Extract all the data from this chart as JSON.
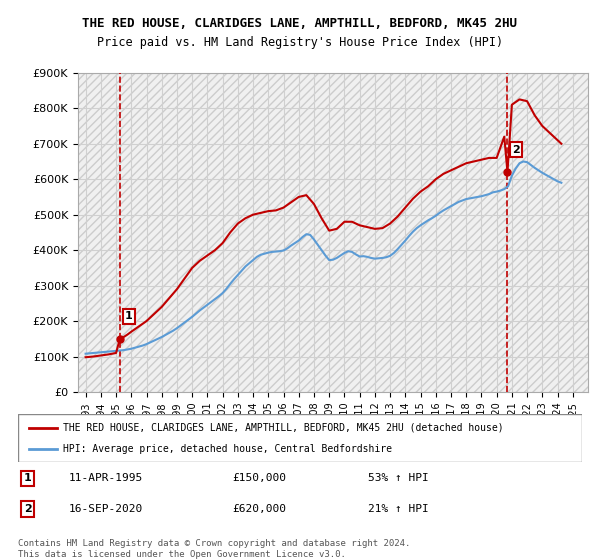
{
  "title_line1": "THE RED HOUSE, CLARIDGES LANE, AMPTHILL, BEDFORD, MK45 2HU",
  "title_line2": "Price paid vs. HM Land Registry's House Price Index (HPI)",
  "ylabel": "",
  "ylim": [
    0,
    900000
  ],
  "yticks": [
    0,
    100000,
    200000,
    300000,
    400000,
    500000,
    600000,
    700000,
    800000,
    900000
  ],
  "ytick_labels": [
    "£0",
    "£100K",
    "£200K",
    "£300K",
    "£400K",
    "£500K",
    "£600K",
    "£700K",
    "£800K",
    "£900K"
  ],
  "xlim_start": 1992.5,
  "xlim_end": 2026.0,
  "xticks": [
    1993,
    1994,
    1995,
    1996,
    1997,
    1998,
    1999,
    2000,
    2001,
    2002,
    2003,
    2004,
    2005,
    2006,
    2007,
    2008,
    2009,
    2010,
    2011,
    2012,
    2013,
    2014,
    2015,
    2016,
    2017,
    2018,
    2019,
    2020,
    2021,
    2022,
    2023,
    2024,
    2025
  ],
  "sale1_x": 1995.27,
  "sale1_y": 150000,
  "sale1_label": "1",
  "sale2_x": 2020.71,
  "sale2_y": 620000,
  "sale2_label": "2",
  "hpi_color": "#5b9bd5",
  "property_color": "#c00000",
  "vline_color": "#c00000",
  "grid_color": "#d0d0d0",
  "bg_color": "#f0f0f0",
  "legend_line1": "THE RED HOUSE, CLARIDGES LANE, AMPTHILL, BEDFORD, MK45 2HU (detached house)",
  "legend_line2": "HPI: Average price, detached house, Central Bedfordshire",
  "annotation1_date": "11-APR-1995",
  "annotation1_price": "£150,000",
  "annotation1_hpi": "53% ↑ HPI",
  "annotation2_date": "16-SEP-2020",
  "annotation2_price": "£620,000",
  "annotation2_hpi": "21% ↑ HPI",
  "footer": "Contains HM Land Registry data © Crown copyright and database right 2024.\nThis data is licensed under the Open Government Licence v3.0.",
  "hpi_data_x": [
    1993.0,
    1993.25,
    1993.5,
    1993.75,
    1994.0,
    1994.25,
    1994.5,
    1994.75,
    1995.0,
    1995.25,
    1995.5,
    1995.75,
    1996.0,
    1996.25,
    1996.5,
    1996.75,
    1997.0,
    1997.25,
    1997.5,
    1997.75,
    1998.0,
    1998.25,
    1998.5,
    1998.75,
    1999.0,
    1999.25,
    1999.5,
    1999.75,
    2000.0,
    2000.25,
    2000.5,
    2000.75,
    2001.0,
    2001.25,
    2001.5,
    2001.75,
    2002.0,
    2002.25,
    2002.5,
    2002.75,
    2003.0,
    2003.25,
    2003.5,
    2003.75,
    2004.0,
    2004.25,
    2004.5,
    2004.75,
    2005.0,
    2005.25,
    2005.5,
    2005.75,
    2006.0,
    2006.25,
    2006.5,
    2006.75,
    2007.0,
    2007.25,
    2007.5,
    2007.75,
    2008.0,
    2008.25,
    2008.5,
    2008.75,
    2009.0,
    2009.25,
    2009.5,
    2009.75,
    2010.0,
    2010.25,
    2010.5,
    2010.75,
    2011.0,
    2011.25,
    2011.5,
    2011.75,
    2012.0,
    2012.25,
    2012.5,
    2012.75,
    2013.0,
    2013.25,
    2013.5,
    2013.75,
    2014.0,
    2014.25,
    2014.5,
    2014.75,
    2015.0,
    2015.25,
    2015.5,
    2015.75,
    2016.0,
    2016.25,
    2016.5,
    2016.75,
    2017.0,
    2017.25,
    2017.5,
    2017.75,
    2018.0,
    2018.25,
    2018.5,
    2018.75,
    2019.0,
    2019.25,
    2019.5,
    2019.75,
    2020.0,
    2020.25,
    2020.5,
    2020.75,
    2021.0,
    2021.25,
    2021.5,
    2021.75,
    2022.0,
    2022.25,
    2022.5,
    2022.75,
    2023.0,
    2023.25,
    2023.5,
    2023.75,
    2024.0,
    2024.25
  ],
  "hpi_data_y": [
    108000,
    109000,
    110000,
    111000,
    112000,
    113000,
    114000,
    115000,
    116000,
    117000,
    118000,
    120000,
    122000,
    125000,
    128000,
    131000,
    135000,
    140000,
    145000,
    150000,
    155000,
    161000,
    167000,
    173000,
    180000,
    188000,
    196000,
    204000,
    212000,
    221000,
    230000,
    238000,
    246000,
    254000,
    262000,
    270000,
    279000,
    291000,
    305000,
    318000,
    330000,
    342000,
    354000,
    363000,
    372000,
    381000,
    387000,
    390000,
    393000,
    395000,
    396000,
    397000,
    399000,
    405000,
    413000,
    420000,
    427000,
    437000,
    445000,
    443000,
    430000,
    415000,
    400000,
    385000,
    372000,
    373000,
    378000,
    385000,
    392000,
    397000,
    395000,
    388000,
    382000,
    383000,
    381000,
    378000,
    376000,
    377000,
    378000,
    380000,
    384000,
    392000,
    403000,
    415000,
    427000,
    440000,
    452000,
    462000,
    470000,
    477000,
    484000,
    490000,
    497000,
    505000,
    512000,
    518000,
    524000,
    530000,
    536000,
    540000,
    544000,
    546000,
    548000,
    550000,
    552000,
    555000,
    558000,
    563000,
    565000,
    568000,
    572000,
    580000,
    610000,
    630000,
    645000,
    650000,
    648000,
    640000,
    632000,
    625000,
    618000,
    612000,
    606000,
    600000,
    594000,
    590000
  ],
  "property_data_x": [
    1993.0,
    1993.5,
    1994.0,
    1994.5,
    1995.0,
    1995.25,
    1995.5,
    1995.75,
    1996.0,
    1996.5,
    1997.0,
    1997.5,
    1998.0,
    1998.5,
    1999.0,
    1999.5,
    2000.0,
    2000.5,
    2001.0,
    2001.5,
    2002.0,
    2002.5,
    2003.0,
    2003.5,
    2004.0,
    2004.5,
    2005.0,
    2005.5,
    2006.0,
    2006.5,
    2007.0,
    2007.5,
    2008.0,
    2008.5,
    2009.0,
    2009.5,
    2010.0,
    2010.5,
    2011.0,
    2011.5,
    2012.0,
    2012.5,
    2013.0,
    2013.5,
    2014.0,
    2014.5,
    2015.0,
    2015.5,
    2016.0,
    2016.5,
    2017.0,
    2017.5,
    2018.0,
    2018.5,
    2019.0,
    2019.5,
    2020.0,
    2020.5,
    2020.71,
    2021.0,
    2021.5,
    2022.0,
    2022.5,
    2023.0,
    2023.5,
    2024.0,
    2024.25
  ],
  "property_data_y": [
    98000,
    100000,
    103000,
    106000,
    110000,
    150000,
    155000,
    162000,
    170000,
    185000,
    200000,
    220000,
    240000,
    265000,
    290000,
    320000,
    350000,
    370000,
    385000,
    400000,
    420000,
    450000,
    475000,
    490000,
    500000,
    505000,
    510000,
    512000,
    520000,
    535000,
    550000,
    555000,
    530000,
    490000,
    455000,
    460000,
    480000,
    480000,
    470000,
    465000,
    460000,
    462000,
    475000,
    495000,
    520000,
    545000,
    565000,
    580000,
    600000,
    615000,
    625000,
    635000,
    645000,
    650000,
    655000,
    660000,
    660000,
    720000,
    620000,
    810000,
    825000,
    820000,
    780000,
    750000,
    730000,
    710000,
    700000
  ]
}
